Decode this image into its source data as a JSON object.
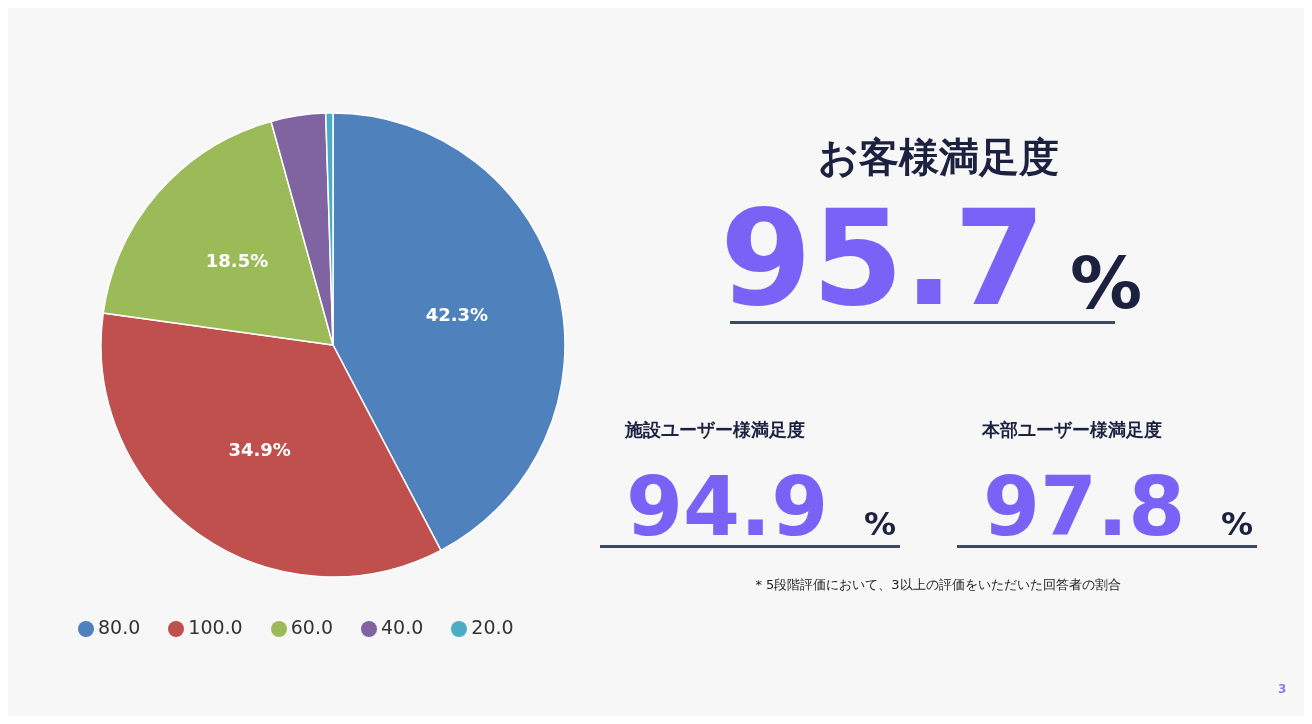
{
  "chart_data": [
    {
      "type": "pie",
      "categories": [
        "80.0",
        "100.0",
        "60.0",
        "40.0",
        "20.0"
      ],
      "values": [
        42.3,
        34.9,
        18.5,
        3.8,
        0.5
      ],
      "colors": [
        "#4f81bd",
        "#c0504d",
        "#9bbb59",
        "#8064a2",
        "#4bacc6"
      ],
      "value_labels": [
        "42.3%",
        "34.9%",
        "18.5%",
        null,
        null
      ],
      "legend": "bottom"
    },
    {
      "type": "other",
      "title": "お客様満足度",
      "categories": [
        "施設ユーザー様満足度",
        "本部ユーザー様満足度"
      ],
      "value_labels": [
        "94.9 %",
        "97.8 %"
      ],
      "subtitle": "95.7 %",
      "annotations": [
        "* 5段階評価において、3以上の評価をいただいた回答者の割合",
        "3"
      ]
    }
  ]
}
